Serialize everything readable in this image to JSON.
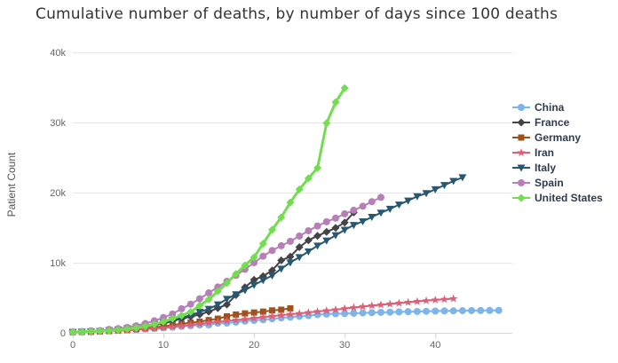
{
  "chart_data": {
    "type": "line",
    "title": "Cumulative number of deaths, by number of days since 100 deaths",
    "xlabel": "",
    "ylabel": "Patient Count",
    "x_unit": "days since 100 deaths",
    "xlim": [
      0,
      48.5
    ],
    "ylim": [
      0,
      40000
    ],
    "x_ticks": [
      0,
      10,
      20,
      30,
      40
    ],
    "y_ticks": [
      0,
      10000,
      20000,
      30000,
      40000
    ],
    "y_tick_labels": [
      "0",
      "10k",
      "20k",
      "30k",
      "40k"
    ],
    "grid": "horizontal",
    "legend_position": "right",
    "colors": {
      "grid": "#e6e6e6",
      "axis_line": "#ccd6eb",
      "tick_label": "#666666",
      "title": "#333333",
      "legend_text": "#2f3b4e"
    },
    "series": [
      {
        "name": "China",
        "color": "#7cb5ec",
        "marker": "circle",
        "values": [
          132,
          170,
          213,
          259,
          304,
          361,
          425,
          491,
          563,
          633,
          718,
          805,
          905,
          1012,
          1112,
          1117,
          1369,
          1380,
          1523,
          1665,
          1770,
          1868,
          2004,
          2130,
          2236,
          2345,
          2445,
          2595,
          2665,
          2717,
          2746,
          2790,
          2837,
          2872,
          2914,
          2947,
          2983,
          3015,
          3044,
          3072,
          3100,
          3123,
          3139,
          3161,
          3172,
          3180,
          3194,
          3203
        ]
      },
      {
        "name": "France",
        "color": "#434348",
        "marker": "diamond",
        "values": [
          127,
          148,
          175,
          264,
          372,
          450,
          562,
          674,
          860,
          1100,
          1331,
          1696,
          1995,
          2314,
          2606,
          3024,
          3523,
          4032,
          5387,
          6507,
          7560,
          8078,
          8911,
          10328,
          10869,
          12210,
          13197,
          13832,
          14393,
          14967,
          15729,
          17167
        ]
      },
      {
        "name": "Germany",
        "color": "#a0521d",
        "marker": "square",
        "values": [
          107,
          123,
          157,
          206,
          267,
          342,
          433,
          533,
          645,
          775,
          920,
          1107,
          1275,
          1444,
          1584,
          1810,
          2016,
          2349,
          2607,
          2767,
          2894,
          3022,
          3194,
          3294,
          3494
        ]
      },
      {
        "name": "Iran",
        "color": "#dc6078",
        "marker": "star",
        "values": [
          107,
          124,
          145,
          194,
          237,
          291,
          354,
          429,
          514,
          611,
          724,
          853,
          988,
          1135,
          1284,
          1433,
          1556,
          1685,
          1812,
          1934,
          2077,
          2234,
          2378,
          2517,
          2640,
          2757,
          2898,
          3036,
          3160,
          3294,
          3452,
          3603,
          3739,
          3872,
          3993,
          4110,
          4232,
          4357,
          4474,
          4585,
          4683,
          4777,
          4869
        ]
      },
      {
        "name": "Italy",
        "color": "#27586f",
        "marker": "triangle-down",
        "values": [
          107,
          148,
          197,
          233,
          366,
          463,
          631,
          827,
          1016,
          1266,
          1441,
          1809,
          2158,
          2503,
          2978,
          3405,
          4032,
          4825,
          5476,
          6077,
          6820,
          7503,
          8165,
          9134,
          10023,
          10779,
          11591,
          12428,
          13155,
          13915,
          14681,
          15362,
          15887,
          16523,
          17127,
          17669,
          18279,
          18849,
          19468,
          19899,
          20465,
          21067,
          21645,
          22170
        ]
      },
      {
        "name": "Spain",
        "color": "#b77fb7",
        "marker": "circle",
        "values": [
          120,
          136,
          288,
          309,
          491,
          598,
          767,
          1002,
          1326,
          1720,
          2182,
          2696,
          3434,
          4089,
          4858,
          5690,
          6528,
          7340,
          8189,
          9053,
          10003,
          10935,
          11744,
          12418,
          13055,
          13798,
          14555,
          15238,
          15843,
          16353,
          16972,
          17489,
          18056,
          18708,
          19315
        ]
      },
      {
        "name": "United States",
        "color": "#73dd50",
        "marker": "diamond",
        "values": [
          108,
          150,
          207,
          256,
          302,
          414,
          554,
          706,
          942,
          1209,
          1581,
          2026,
          2467,
          2978,
          3873,
          4757,
          5926,
          7087,
          8407,
          9619,
          10783,
          12722,
          14695,
          16478,
          18586,
          20463,
          22020,
          23529,
          29900,
          32900,
          34900
        ]
      }
    ]
  }
}
